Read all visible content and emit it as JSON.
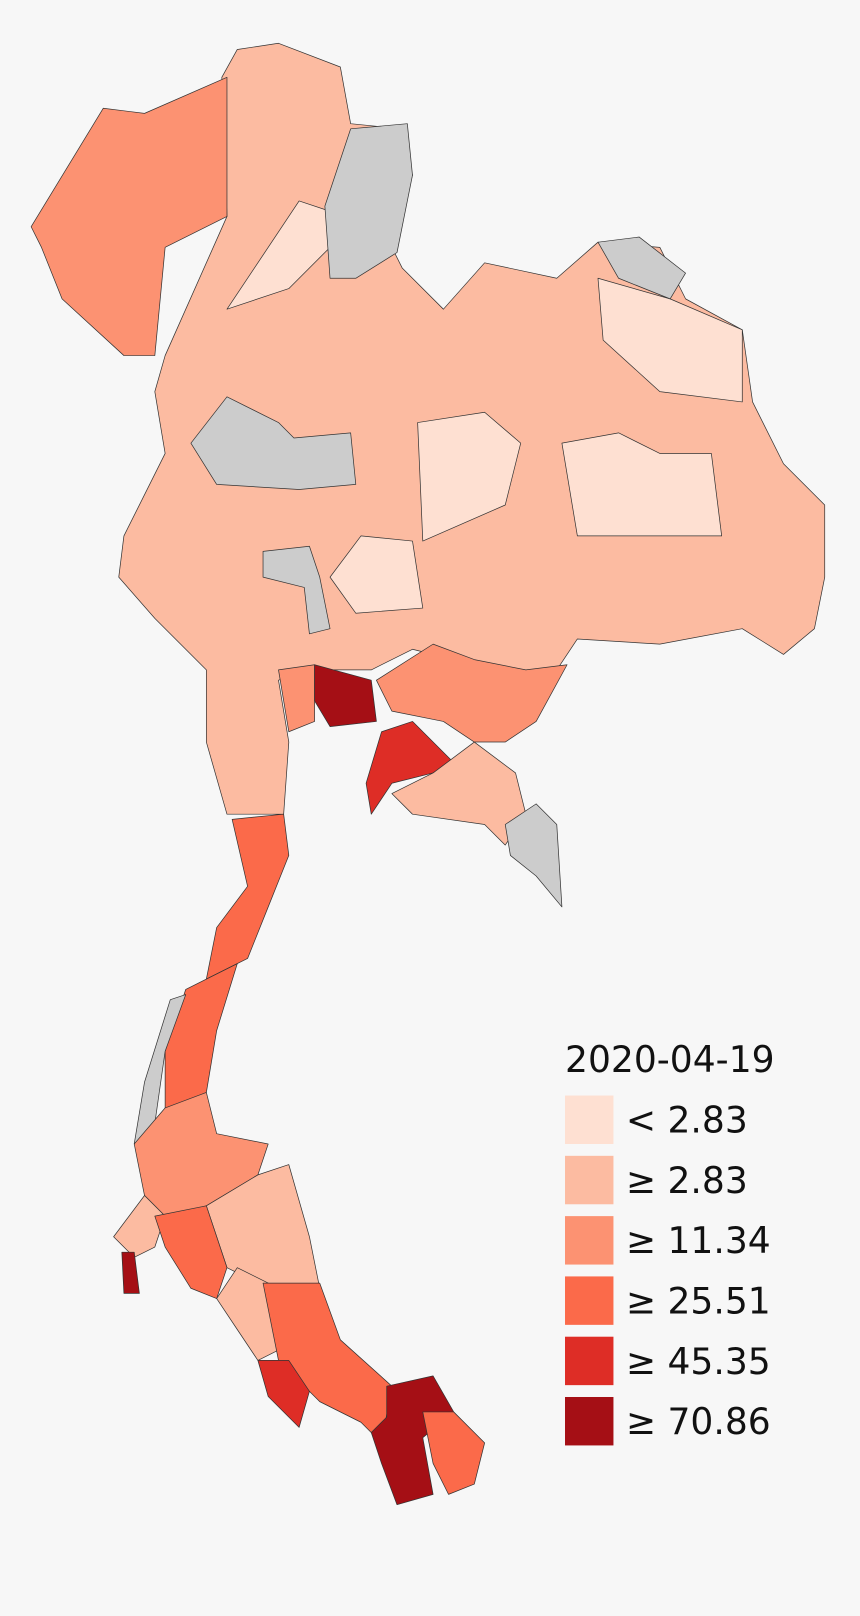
{
  "legend": {
    "title": "2020-04-19",
    "items": [
      {
        "label": "< 2.83",
        "color": "#fee0d2"
      },
      {
        "label": "≥ 2.83",
        "color": "#fcbba1"
      },
      {
        "label": "≥ 11.34",
        "color": "#fc9272"
      },
      {
        "label": "≥ 25.51",
        "color": "#fb6a4a"
      },
      {
        "label": "≥ 45.35",
        "color": "#de2d26"
      },
      {
        "label": "≥ 70.86",
        "color": "#a50f15"
      }
    ]
  }
}
